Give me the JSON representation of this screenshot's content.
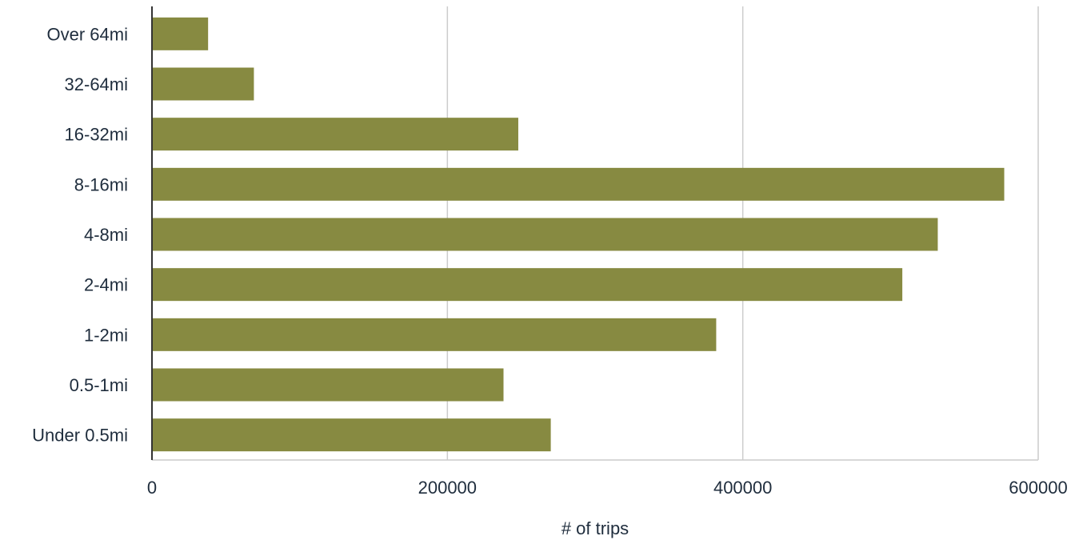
{
  "chart_data": {
    "type": "bar",
    "orientation": "horizontal",
    "categories": [
      "Over 64mi",
      "32-64mi",
      "16-32mi",
      "8-16mi",
      "4-8mi",
      "2-4mi",
      "1-2mi",
      "0.5-1mi",
      "Under 0.5mi"
    ],
    "values": [
      38000,
      69000,
      248000,
      577000,
      532000,
      508000,
      382000,
      238000,
      270000
    ],
    "xlabel": "# of trips",
    "ylabel": "",
    "xlim": [
      0,
      600000
    ],
    "xticks": [
      "0",
      "200000",
      "400000",
      "600000"
    ],
    "grid": "vertical",
    "legend": "none",
    "bar_color": "#878a41",
    "grid_color": "#cccccc",
    "axis_color": "#333333"
  }
}
